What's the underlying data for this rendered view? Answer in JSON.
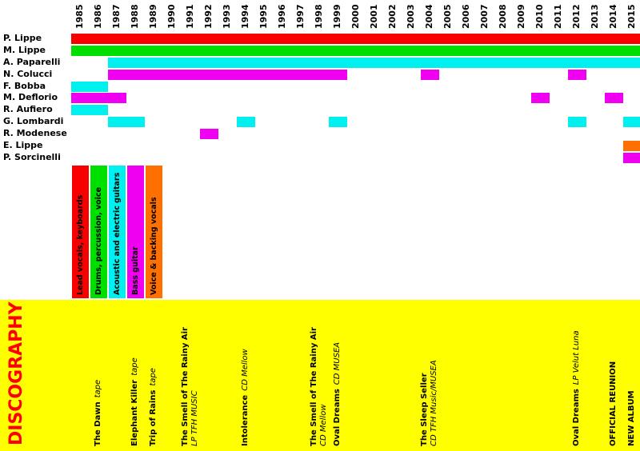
{
  "chart_data": {
    "type": "bar",
    "subtype": "band-member-timeline",
    "title": "Band members timeline with discography",
    "x_axis": {
      "ticks": [
        1985,
        1986,
        1987,
        1988,
        1989,
        1990,
        1991,
        1992,
        1993,
        1994,
        1995,
        1996,
        1997,
        1998,
        1999,
        2000,
        2001,
        2002,
        2003,
        2004,
        2005,
        2006,
        2007,
        2008,
        2009,
        2010,
        2011,
        2012,
        2013,
        2014,
        2015
      ]
    },
    "colors": {
      "red": "#f80000",
      "green": "#00e000",
      "cyan": "#00f0f0",
      "magenta": "#f000f0",
      "orange": "#ff7000"
    },
    "legend": [
      {
        "label": "Lead vocals, keyboards",
        "color_key": "red"
      },
      {
        "label": "Drums, percussion, voice",
        "color_key": "green"
      },
      {
        "label": "Acoustic and electric guitars",
        "color_key": "cyan"
      },
      {
        "label": "Bass guitar",
        "color_key": "magenta"
      },
      {
        "label": "Voice & backing vocals",
        "color_key": "orange"
      }
    ],
    "members": [
      {
        "name": "P. Lippe",
        "role": "Lead vocals, keyboards",
        "color_key": "red",
        "stints": [
          [
            1985,
            2015
          ]
        ]
      },
      {
        "name": "M. Lippe",
        "role": "Drums, percussion, voice",
        "color_key": "green",
        "stints": [
          [
            1985,
            2015
          ]
        ]
      },
      {
        "name": "A. Paparelli",
        "role": "Acoustic and electric guitars",
        "color_key": "cyan",
        "stints": [
          [
            1987,
            2015
          ]
        ]
      },
      {
        "name": "N. Colucci",
        "role": "Bass guitar",
        "color_key": "magenta",
        "stints": [
          [
            1987,
            1999
          ],
          [
            2004,
            2004
          ],
          [
            2012,
            2012
          ]
        ]
      },
      {
        "name": "F. Bobba",
        "role": "Acoustic and electric guitars",
        "color_key": "cyan",
        "stints": [
          [
            1985,
            1986
          ]
        ]
      },
      {
        "name": "M. Deflorio",
        "role": "Bass guitar",
        "color_key": "magenta",
        "stints": [
          [
            1985,
            1987
          ],
          [
            2010,
            2010
          ],
          [
            2014,
            2014
          ]
        ]
      },
      {
        "name": "R. Aufiero",
        "role": "Acoustic and electric guitars",
        "color_key": "cyan",
        "stints": [
          [
            1985,
            1986
          ]
        ]
      },
      {
        "name": "G. Lombardi",
        "role": "Acoustic and electric guitars",
        "color_key": "cyan",
        "stints": [
          [
            1987,
            1988
          ],
          [
            1994,
            1994
          ],
          [
            1999,
            1999
          ],
          [
            2012,
            2012
          ],
          [
            2015,
            2015
          ]
        ]
      },
      {
        "name": "R. Modenese",
        "role": "Bass guitar",
        "color_key": "magenta",
        "stints": [
          [
            1992,
            1992
          ]
        ]
      },
      {
        "name": "E. Lippe",
        "role": "Voice & backing vocals",
        "color_key": "orange",
        "stints": [
          [
            2015,
            2015
          ]
        ]
      },
      {
        "name": "P. Sorcinelli",
        "role": "Bass guitar",
        "color_key": "magenta",
        "stints": [
          [
            2015,
            2015
          ]
        ]
      }
    ]
  },
  "discography": {
    "title": "DISCOGRAPHY",
    "title_color": "#ff0000",
    "background": "#ffff00",
    "entries": [
      {
        "year": 1986,
        "title": "The Dawn",
        "label": "tape",
        "two_line": false
      },
      {
        "year": 1988,
        "title": "Elephant Killer",
        "label": "tape",
        "two_line": false
      },
      {
        "year": 1989,
        "title": "Trip of Rains",
        "label": "tape",
        "two_line": false
      },
      {
        "year": 1991,
        "title": "The Smell of The Rainy Air",
        "label": "LP TFH MUSIC",
        "two_line": true
      },
      {
        "year": 1994,
        "title": "Intolerance",
        "label": "CD Mellow",
        "two_line": false
      },
      {
        "year": 1998,
        "title": "The Smell of The Rainy Air",
        "label": "CD Mellow",
        "two_line": true
      },
      {
        "year": 1999,
        "title": "Oval Dreams",
        "label": "CD MUSEA",
        "two_line": false
      },
      {
        "year": 2004,
        "title": "The Sleep Seller",
        "label": "CD TFH Music/MUSEA",
        "two_line": true
      },
      {
        "year": 2012,
        "title": "Oval Dreams",
        "label": "LP Velut Luna",
        "two_line": false
      },
      {
        "year": 2014,
        "title": "OFFICIAL REUNION",
        "label": "",
        "two_line": false
      },
      {
        "year": 2015,
        "title": "NEW ALBUM",
        "label": "",
        "two_line": false
      }
    ]
  }
}
